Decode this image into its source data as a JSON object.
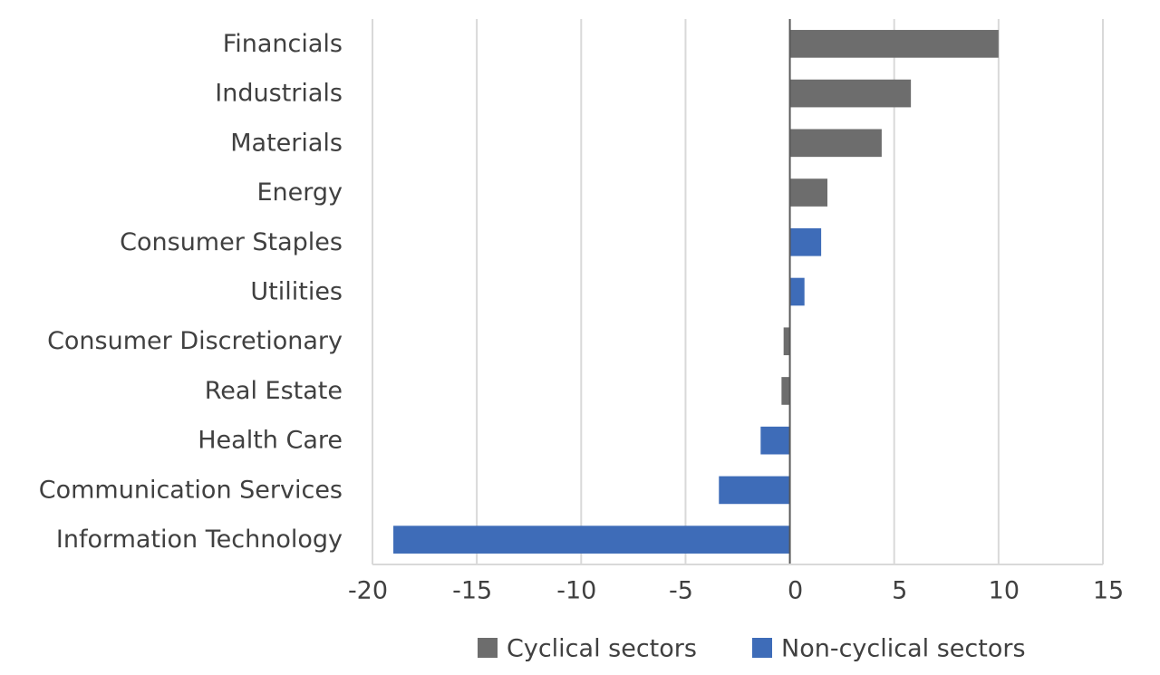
{
  "chart_data": {
    "type": "bar",
    "orientation": "horizontal",
    "categories": [
      "Financials",
      "Industrials",
      "Materials",
      "Energy",
      "Consumer Staples",
      "Utilities",
      "Consumer Discretionary",
      "Real Estate",
      "Health Care",
      "Communication Services",
      "Information Technology"
    ],
    "values": [
      10.0,
      5.8,
      4.4,
      1.8,
      1.5,
      0.7,
      -0.3,
      -0.4,
      -1.4,
      -3.4,
      -19.0
    ],
    "groups": [
      "cyclical",
      "cyclical",
      "cyclical",
      "cyclical",
      "non-cyclical",
      "non-cyclical",
      "cyclical",
      "cyclical",
      "non-cyclical",
      "non-cyclical",
      "non-cyclical"
    ],
    "series": [
      {
        "key": "cyclical",
        "name": "Cyclical sectors",
        "color": "#6d6d6d"
      },
      {
        "key": "non-cyclical",
        "name": "Non-cyclical sectors",
        "color": "#3e6cb8"
      }
    ],
    "xlim": [
      -20,
      15
    ],
    "xticks": [
      -20,
      -15,
      -10,
      -5,
      0,
      5,
      10,
      15
    ],
    "xtick_labels": [
      "-20",
      "-15",
      "-10",
      "-5",
      "0",
      "5",
      "10",
      "15"
    ],
    "title": "",
    "xlabel": "",
    "ylabel": "",
    "grid": "vertical",
    "legend_position": "bottom-center"
  },
  "colors": {
    "gridline": "#d9d9d9",
    "axis": "#595959",
    "text": "#404040"
  }
}
